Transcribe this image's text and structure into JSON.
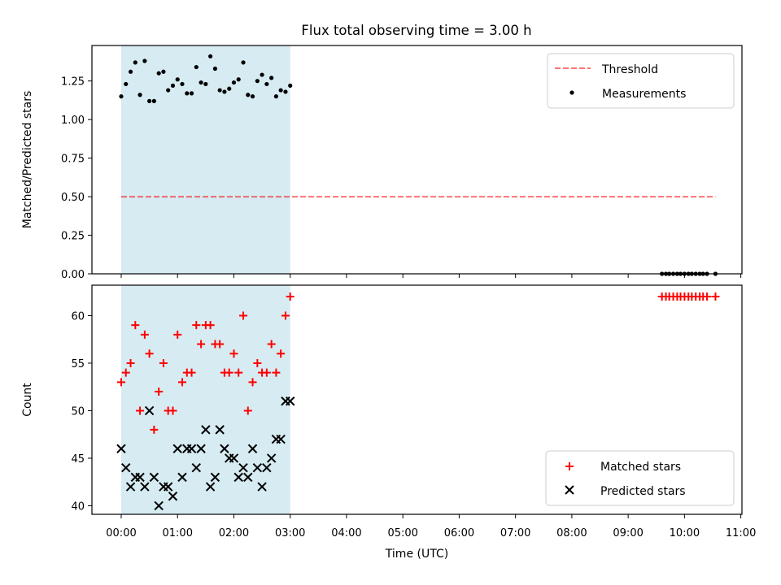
{
  "title": "Flux total observing time = 3.00 h",
  "colors": {
    "shade": "#add8e6",
    "threshold": "#ff0000",
    "measurement": "#000000",
    "matched": "#ff0000",
    "predicted": "#000000"
  },
  "chart_data": [
    {
      "type": "scatter",
      "ylabel": "Matched/Predicted stars",
      "xlabel": "",
      "xlim_hours": [
        -0.52,
        11.02
      ],
      "ylim": [
        0,
        1.48
      ],
      "yticks": [
        "0.00",
        "0.25",
        "0.50",
        "0.75",
        "1.00",
        "1.25"
      ],
      "shaded_span_hours": [
        0,
        3
      ],
      "threshold": {
        "value": 0.5,
        "x_range_hours": [
          0,
          10.55
        ]
      },
      "legend": {
        "placement": "top-right",
        "entries": [
          "Threshold",
          "Measurements"
        ]
      },
      "series": [
        {
          "name": "Measurements",
          "x_hours": [
            0,
            0.083,
            0.167,
            0.25,
            0.333,
            0.417,
            0.5,
            0.583,
            0.667,
            0.75,
            0.833,
            0.917,
            1,
            1.083,
            1.167,
            1.25,
            1.333,
            1.417,
            1.5,
            1.583,
            1.667,
            1.75,
            1.833,
            1.917,
            2,
            2.083,
            2.167,
            2.25,
            2.333,
            2.417,
            2.5,
            2.583,
            2.667,
            2.75,
            2.833,
            2.917,
            3,
            9.6,
            9.67,
            9.73,
            9.8,
            9.87,
            9.93,
            10,
            10.07,
            10.13,
            10.2,
            10.27,
            10.33,
            10.4,
            10.55
          ],
          "y": [
            1.15,
            1.23,
            1.31,
            1.37,
            1.16,
            1.38,
            1.12,
            1.12,
            1.3,
            1.31,
            1.19,
            1.22,
            1.26,
            1.23,
            1.17,
            1.17,
            1.34,
            1.24,
            1.23,
            1.41,
            1.33,
            1.19,
            1.18,
            1.2,
            1.24,
            1.26,
            1.37,
            1.16,
            1.15,
            1.25,
            1.29,
            1.23,
            1.27,
            1.15,
            1.19,
            1.18,
            1.22,
            0,
            0,
            0,
            0,
            0,
            0,
            0,
            0,
            0,
            0,
            0,
            0,
            0,
            0
          ]
        }
      ]
    },
    {
      "type": "scatter",
      "ylabel": "Count",
      "xlabel": "Time (UTC)",
      "xlim_hours": [
        -0.52,
        11.02
      ],
      "ylim": [
        39.1,
        63.2
      ],
      "yticks": [
        "40",
        "45",
        "50",
        "55",
        "60"
      ],
      "xticks": [
        "00:00",
        "01:00",
        "02:00",
        "03:00",
        "04:00",
        "05:00",
        "06:00",
        "07:00",
        "08:00",
        "09:00",
        "10:00",
        "11:00"
      ],
      "shaded_span_hours": [
        0,
        3
      ],
      "legend": {
        "placement": "bottom-right",
        "entries": [
          "Matched stars",
          "Predicted stars"
        ]
      },
      "series": [
        {
          "name": "Matched stars",
          "x_hours": [
            0,
            0.083,
            0.167,
            0.25,
            0.333,
            0.417,
            0.5,
            0.583,
            0.667,
            0.75,
            0.833,
            0.917,
            1,
            1.083,
            1.167,
            1.25,
            1.333,
            1.417,
            1.5,
            1.583,
            1.667,
            1.75,
            1.833,
            1.917,
            2,
            2.083,
            2.167,
            2.25,
            2.333,
            2.417,
            2.5,
            2.583,
            2.667,
            2.75,
            2.833,
            2.917,
            3,
            9.6,
            9.67,
            9.73,
            9.8,
            9.87,
            9.93,
            10,
            10.07,
            10.13,
            10.2,
            10.27,
            10.33,
            10.4,
            10.55
          ],
          "y": [
            53,
            54,
            55,
            59,
            50,
            58,
            56,
            48,
            52,
            55,
            50,
            50,
            58,
            53,
            54,
            54,
            59,
            57,
            59,
            59,
            57,
            57,
            54,
            54,
            56,
            54,
            60,
            50,
            53,
            55,
            54,
            54,
            57,
            54,
            56,
            60,
            62,
            62,
            62,
            62,
            62,
            62,
            62,
            62,
            62,
            62,
            62,
            62,
            62,
            62,
            62
          ]
        },
        {
          "name": "Predicted stars",
          "x_hours": [
            0,
            0.083,
            0.167,
            0.25,
            0.333,
            0.417,
            0.5,
            0.583,
            0.667,
            0.75,
            0.833,
            0.917,
            1,
            1.083,
            1.167,
            1.25,
            1.333,
            1.417,
            1.5,
            1.583,
            1.667,
            1.75,
            1.833,
            1.917,
            2,
            2.083,
            2.167,
            2.25,
            2.333,
            2.417,
            2.5,
            2.583,
            2.667,
            2.75,
            2.833,
            2.917,
            3
          ],
          "y": [
            46,
            44,
            42,
            43,
            43,
            42,
            50,
            43,
            40,
            42,
            42,
            41,
            46,
            43,
            46,
            46,
            44,
            46,
            48,
            42,
            43,
            48,
            46,
            45,
            45,
            43,
            44,
            43,
            46,
            44,
            42,
            44,
            45,
            47,
            47,
            51,
            51
          ]
        }
      ]
    }
  ]
}
